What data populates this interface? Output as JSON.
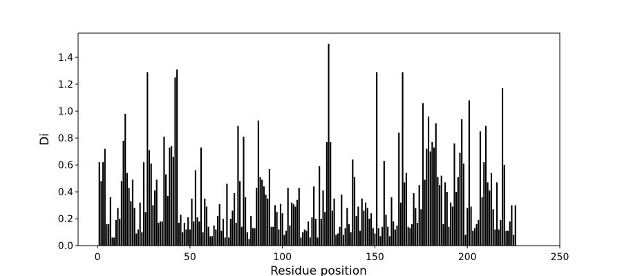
{
  "chart_data": {
    "type": "bar",
    "xlabel": "Residue position",
    "ylabel": "Di",
    "color": "#000000",
    "bar_width": 0.8,
    "x": [
      1,
      2,
      3,
      4,
      5,
      6,
      7,
      8,
      9,
      10,
      11,
      12,
      13,
      14,
      15,
      16,
      17,
      18,
      19,
      20,
      21,
      22,
      23,
      24,
      25,
      26,
      27,
      28,
      29,
      30,
      31,
      32,
      33,
      34,
      35,
      36,
      37,
      38,
      39,
      40,
      41,
      42,
      43,
      44,
      45,
      46,
      47,
      48,
      49,
      50,
      51,
      52,
      53,
      54,
      55,
      56,
      57,
      58,
      59,
      60,
      61,
      62,
      63,
      64,
      65,
      66,
      67,
      68,
      69,
      70,
      71,
      72,
      73,
      74,
      75,
      76,
      77,
      78,
      79,
      80,
      81,
      82,
      83,
      84,
      85,
      86,
      87,
      88,
      89,
      90,
      91,
      92,
      93,
      94,
      95,
      96,
      97,
      98,
      99,
      100,
      101,
      102,
      103,
      104,
      105,
      106,
      107,
      108,
      109,
      110,
      111,
      112,
      113,
      114,
      115,
      116,
      117,
      118,
      119,
      120,
      121,
      122,
      123,
      124,
      125,
      126,
      127,
      128,
      129,
      130,
      131,
      132,
      133,
      134,
      135,
      136,
      137,
      138,
      139,
      140,
      141,
      142,
      143,
      144,
      145,
      146,
      147,
      148,
      149,
      150,
      151,
      152,
      153,
      154,
      155,
      156,
      157,
      158,
      159,
      160,
      161,
      162,
      163,
      164,
      165,
      166,
      167,
      168,
      169,
      170,
      171,
      172,
      173,
      174,
      175,
      176,
      177,
      178,
      179,
      180,
      181,
      182,
      183,
      184,
      185,
      186,
      187,
      188,
      189,
      190,
      191,
      192,
      193,
      194,
      195,
      196,
      197,
      198,
      199,
      200,
      201,
      202,
      203,
      204,
      205,
      206,
      207,
      208,
      209,
      210,
      211,
      212,
      213,
      214,
      215,
      216,
      217,
      218,
      219,
      220,
      221,
      222,
      223,
      224,
      225,
      226
    ],
    "values": [
      0.62,
      0.48,
      0.62,
      0.72,
      0.16,
      0.16,
      0.36,
      0.06,
      0.06,
      0.19,
      0.28,
      0.2,
      0.48,
      0.78,
      0.98,
      0.54,
      0.43,
      0.33,
      0.49,
      0.28,
      0.09,
      0.12,
      0.32,
      0.1,
      0.62,
      0.25,
      1.29,
      0.71,
      0.61,
      0.3,
      0.41,
      0.49,
      0.17,
      0.18,
      0.18,
      0.81,
      0.53,
      0.37,
      0.73,
      0.74,
      0.66,
      1.25,
      1.31,
      0.17,
      0.23,
      0.1,
      0.17,
      0.12,
      0.21,
      0.12,
      0.35,
      0.18,
      0.56,
      0.21,
      0.18,
      0.73,
      0.1,
      0.35,
      0.29,
      0.14,
      0.07,
      0.07,
      0.15,
      0.12,
      0.22,
      0.31,
      0.11,
      0.2,
      0.06,
      0.46,
      0.06,
      0.2,
      0.26,
      0.39,
      0.17,
      0.89,
      0.48,
      0.14,
      0.81,
      0.36,
      0.1,
      0.05,
      0.22,
      0.13,
      0.13,
      0.43,
      0.93,
      0.51,
      0.49,
      0.44,
      0.38,
      0.35,
      0.57,
      0.14,
      0.14,
      0.3,
      0.25,
      0.12,
      0.31,
      0.24,
      0.08,
      0.11,
      0.43,
      0.15,
      0.32,
      0.31,
      0.29,
      0.34,
      0.43,
      0.06,
      0.1,
      0.12,
      0.11,
      0.18,
      0.06,
      0.21,
      0.44,
      0.2,
      0.06,
      0.59,
      0.2,
      0.41,
      0.25,
      0.77,
      1.5,
      0.77,
      0.26,
      0.35,
      0.08,
      0.09,
      0.14,
      0.38,
      0.08,
      0.13,
      0.28,
      0.16,
      0.1,
      0.64,
      0.51,
      0.22,
      0.29,
      0.11,
      0.35,
      0.26,
      0.32,
      0.28,
      0.2,
      0.24,
      0.13,
      0.09,
      1.29,
      0.13,
      0.07,
      0.14,
      0.63,
      0.23,
      0.14,
      0.07,
      0.36,
      0.18,
      0.12,
      0.15,
      0.84,
      0.32,
      1.29,
      0.47,
      0.54,
      0.14,
      0.13,
      0.16,
      0.39,
      0.28,
      0.17,
      0.45,
      0.27,
      1.06,
      0.49,
      0.72,
      0.96,
      0.7,
      0.77,
      0.73,
      0.91,
      0.51,
      0.45,
      0.52,
      0.16,
      0.47,
      0.4,
      0.14,
      0.32,
      0.29,
      0.76,
      0.4,
      0.51,
      0.69,
      0.94,
      0.61,
      0.08,
      0.28,
      1.08,
      0.29,
      0.11,
      0.13,
      0.16,
      0.19,
      0.85,
      0.36,
      0.62,
      0.89,
      0.47,
      0.41,
      0.54,
      0.27,
      0.12,
      0.47,
      0.12,
      0.19,
      1.17,
      0.6,
      0.11,
      0.11,
      0.18,
      0.3,
      0.08,
      0.3
    ],
    "xlim": [
      -10.5,
      250
    ],
    "xticks": [
      0,
      50,
      100,
      150,
      200,
      250
    ],
    "ylim": [
      0,
      1.58
    ],
    "yticks": [
      {
        "value": 0,
        "label": "0.0"
      },
      0.2,
      0.4,
      0.6,
      0.8,
      {
        "value": 1,
        "label": "1.0"
      },
      1.2,
      1.4
    ],
    "grid": false
  }
}
